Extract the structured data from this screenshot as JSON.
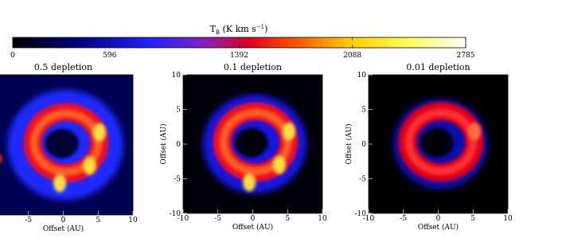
{
  "chart_data": {
    "type": "image",
    "colorbar": {
      "label": "T",
      "label_sub": "B",
      "label_unit": " (K km s",
      "label_sup": "−1",
      "label_end": ")",
      "clim": [
        0,
        2785
      ],
      "ticks": [
        0,
        596,
        1392,
        2088,
        2785
      ]
    },
    "panels": [
      {
        "title": "0.5 depletion",
        "xlabel": "Offset (AU)",
        "xlim": [
          -10,
          10
        ],
        "ylim": [
          -10,
          10
        ],
        "xticks": [
          -5,
          0,
          5,
          10
        ]
      },
      {
        "title": "0.1 depletion",
        "xlabel": "Offset (AU)",
        "ylabel": "Offset (AU)",
        "xlim": [
          -10,
          10
        ],
        "ylim": [
          -10,
          10
        ],
        "xticks": [
          -10,
          -5,
          0,
          5,
          10
        ],
        "yticks": [
          -10,
          -5,
          0,
          5,
          10
        ]
      },
      {
        "title": "0.01 depletion",
        "xlabel": "Offset (AU)",
        "ylabel": "Offset (AU)",
        "xlim": [
          -10,
          10
        ],
        "ylim": [
          -10,
          10
        ],
        "xticks": [
          -10,
          -5,
          0,
          5,
          10
        ],
        "yticks": [
          -10,
          -5,
          0,
          5,
          10
        ]
      }
    ]
  }
}
